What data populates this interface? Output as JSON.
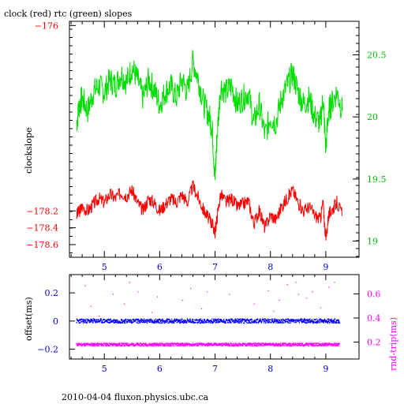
{
  "colors": {
    "clock": "#ff0000",
    "rtc": "#00dd00",
    "offset": "#0000ff",
    "rndtrip": "#ff00ff",
    "axis": "#000000"
  },
  "chart_data": [
    {
      "type": "line",
      "title": "clock (red) rtc (green) slopes",
      "ylabel": "clockslope",
      "xlim": [
        4.37,
        9.6
      ],
      "ylim_left": [
        -178.75,
        -175.95
      ],
      "ylim_right": [
        18.87,
        20.77
      ],
      "x_ticks": [
        5,
        6,
        7,
        8,
        9
      ],
      "x_tick_labels": [
        "5",
        "6",
        "7",
        "8",
        "9"
      ],
      "y_left_ticks": [
        -176,
        -178.2,
        -178.4,
        -178.6
      ],
      "y_left_tick_labels": [
        "-176",
        "-178.2",
        "-178.4",
        "-178.6"
      ],
      "y_right_ticks": [
        20.5,
        20,
        19.5,
        19
      ],
      "y_right_tick_labels": [
        "20.5",
        "20",
        "19.5",
        "19"
      ],
      "series": [
        {
          "name": "clock (red)",
          "axis": "left",
          "x": [
            4.5,
            4.55,
            4.6,
            4.7,
            4.8,
            4.9,
            5.0,
            5.1,
            5.2,
            5.3,
            5.4,
            5.5,
            5.6,
            5.7,
            5.8,
            5.9,
            6.0,
            6.1,
            6.2,
            6.3,
            6.4,
            6.5,
            6.6,
            6.7,
            6.8,
            6.9,
            6.95,
            7.0,
            7.03,
            7.1,
            7.2,
            7.3,
            7.4,
            7.5,
            7.6,
            7.7,
            7.8,
            7.9,
            8.0,
            8.1,
            8.2,
            8.3,
            8.4,
            8.5,
            8.6,
            8.7,
            8.8,
            8.9,
            8.95,
            9.0,
            9.05,
            9.1,
            9.2,
            9.3
          ],
          "y": [
            -178.25,
            -178.2,
            -178.15,
            -178.2,
            -178.12,
            -178.05,
            -178.1,
            -178.0,
            -178.05,
            -177.98,
            -178.02,
            -177.95,
            -178.1,
            -178.2,
            -178.05,
            -178.1,
            -178.2,
            -178.12,
            -178.05,
            -178.1,
            -178.0,
            -178.1,
            -177.9,
            -178.05,
            -178.2,
            -178.3,
            -178.35,
            -178.45,
            -178.3,
            -178.0,
            -178.1,
            -178.05,
            -178.15,
            -178.12,
            -178.08,
            -178.35,
            -178.2,
            -178.4,
            -178.25,
            -178.3,
            -178.15,
            -178.05,
            -177.95,
            -178.1,
            -178.2,
            -178.15,
            -178.25,
            -178.3,
            -178.1,
            -178.55,
            -178.25,
            -178.2,
            -178.1,
            -178.25
          ]
        },
        {
          "name": "rtc (green)",
          "axis": "right",
          "x": [
            4.5,
            4.55,
            4.6,
            4.7,
            4.8,
            4.9,
            5.0,
            5.1,
            5.2,
            5.3,
            5.4,
            5.5,
            5.6,
            5.7,
            5.8,
            5.9,
            6.0,
            6.1,
            6.2,
            6.3,
            6.4,
            6.5,
            6.6,
            6.7,
            6.8,
            6.9,
            6.95,
            7.0,
            7.03,
            7.1,
            7.2,
            7.3,
            7.4,
            7.5,
            7.6,
            7.7,
            7.8,
            7.9,
            8.0,
            8.1,
            8.2,
            8.3,
            8.4,
            8.5,
            8.6,
            8.7,
            8.8,
            8.9,
            8.95,
            9.0,
            9.05,
            9.1,
            9.2,
            9.3
          ],
          "y": [
            19.95,
            20.1,
            20.15,
            20.05,
            20.2,
            20.25,
            20.2,
            20.3,
            20.25,
            20.35,
            20.28,
            20.4,
            20.3,
            20.15,
            20.3,
            20.22,
            20.1,
            20.2,
            20.25,
            20.15,
            20.3,
            20.2,
            20.45,
            20.3,
            20.1,
            20.0,
            19.9,
            19.5,
            19.8,
            20.25,
            20.2,
            20.25,
            20.1,
            20.15,
            20.2,
            19.95,
            20.1,
            19.85,
            20.0,
            19.95,
            20.15,
            20.25,
            20.35,
            20.2,
            20.1,
            20.15,
            20.0,
            19.95,
            20.15,
            19.75,
            20.05,
            20.1,
            20.2,
            20.05
          ]
        }
      ]
    },
    {
      "type": "scatter",
      "ylabel_left": "offset(ms)",
      "ylabel_right": "rnd-trip(ms)",
      "xlim": [
        4.37,
        9.6
      ],
      "ylim_left": [
        -0.27,
        0.33
      ],
      "ylim_right": [
        0.06,
        0.76
      ],
      "x_ticks": [
        5,
        6,
        7,
        8,
        9
      ],
      "x_tick_labels": [
        "5",
        "6",
        "7",
        "8",
        "9"
      ],
      "y_left_ticks": [
        0.2,
        0,
        -0.2
      ],
      "y_left_tick_labels": [
        "0.2",
        "0",
        "-0.2"
      ],
      "y_right_ticks": [
        0.6,
        0.4,
        0.2
      ],
      "y_right_tick_labels": [
        "0.6",
        "0.4",
        "0.2"
      ],
      "series": [
        {
          "name": "offset(ms)",
          "axis": "left",
          "x_range": [
            4.5,
            9.25
          ],
          "center": 0.0,
          "spread": 0.015
        },
        {
          "name": "rnd-trip(ms)",
          "axis": "right",
          "x_range": [
            4.5,
            9.25
          ],
          "center": 0.18,
          "spread": 0.012,
          "outliers_x": [
            4.65,
            4.75,
            4.9,
            5.15,
            5.35,
            5.45,
            5.6,
            5.85,
            5.95,
            6.4,
            6.55,
            6.75,
            6.85,
            7.05,
            7.25,
            7.7,
            7.95,
            8.05,
            8.15,
            8.3,
            8.45,
            8.5,
            8.65,
            8.75,
            8.9,
            9.05,
            9.15
          ],
          "outliers_y": [
            0.67,
            0.5,
            0.42,
            0.6,
            0.52,
            0.7,
            0.62,
            0.45,
            0.58,
            0.55,
            0.65,
            0.48,
            0.62,
            0.4,
            0.6,
            0.52,
            0.63,
            0.46,
            0.55,
            0.68,
            0.7,
            0.6,
            0.57,
            0.62,
            0.49,
            0.66,
            0.7
          ]
        }
      ]
    }
  ],
  "footer": "2010-04-04 fluxon.physics.ubc.ca"
}
